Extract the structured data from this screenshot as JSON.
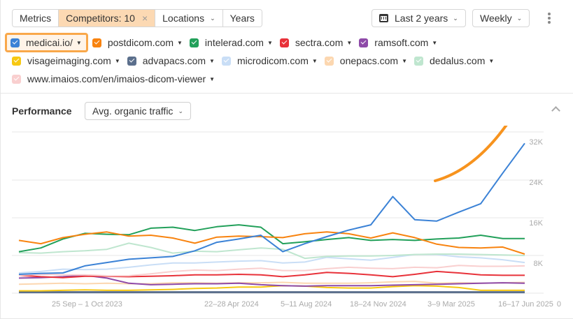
{
  "toolbar": {
    "metrics_label": "Metrics",
    "competitors_label": "Competitors: 10",
    "competitors_clear": "×",
    "locations_label": "Locations",
    "years_label": "Years",
    "date_range_label": "Last 2 years",
    "granularity_label": "Weekly",
    "chevron": "⌄"
  },
  "legend": {
    "items": [
      {
        "label": "medicai.io/",
        "color": "#3b82d6",
        "highlighted": true
      },
      {
        "label": "postdicom.com",
        "color": "#f8830f"
      },
      {
        "label": "intelerad.com",
        "color": "#22a05a"
      },
      {
        "label": "sectra.com",
        "color": "#e8323a"
      },
      {
        "label": "ramsoft.com",
        "color": "#8e4aa8"
      },
      {
        "label": "visageimaging.com",
        "color": "#f7c812"
      },
      {
        "label": "advapacs.com",
        "color": "#5b6f8c"
      },
      {
        "label": "microdicom.com",
        "color": "#c9def6"
      },
      {
        "label": "onepacs.com",
        "color": "#fcd7b0"
      },
      {
        "label": "dedalus.com",
        "color": "#bfe6cf"
      },
      {
        "label": "www.imaios.com/en/imaios-dicom-viewer",
        "color": "#f9cfcf"
      }
    ],
    "caret": "▼"
  },
  "performance": {
    "title": "Performance",
    "metric_label": "Avg. organic traffic"
  },
  "annotation": {
    "type": "arrow",
    "color": "#f7931e",
    "meaning": "growth trend for medicai.io/"
  },
  "chart_data": {
    "type": "line",
    "title": "Performance — Avg. organic traffic",
    "xlabel": "",
    "ylabel": "Avg. organic traffic",
    "ylim": [
      0,
      32000
    ],
    "yticks": [
      "0",
      "8K",
      "16K",
      "24K",
      "32K"
    ],
    "xticks": [
      "25 Sep – 1 Oct 2023",
      "22–28 Apr 2024",
      "5–11 Aug 2024",
      "18–24 Nov 2024",
      "3–9 Mar 2025",
      "16–17 Jun 2025"
    ],
    "grid": true,
    "legend_position": "top",
    "x": [
      "2023-07",
      "2023-08",
      "2023-09",
      "2023-10",
      "2023-11",
      "2023-12",
      "2024-01",
      "2024-02",
      "2024-03",
      "2024-04",
      "2024-05",
      "2024-06",
      "2024-07",
      "2024-08",
      "2024-09",
      "2024-10",
      "2024-11",
      "2024-12",
      "2025-01",
      "2025-02",
      "2025-03",
      "2025-04",
      "2025-05",
      "2025-06"
    ],
    "series": [
      {
        "name": "medicai.io/",
        "color": "#3b82d6",
        "values": [
          4000,
          4200,
          4300,
          5800,
          6500,
          7200,
          7500,
          7800,
          9000,
          10800,
          11500,
          12300,
          8800,
          10500,
          12000,
          13400,
          14500,
          20500,
          15600,
          15300,
          17200,
          19000,
          25500,
          31800
        ]
      },
      {
        "name": "postdicom.com",
        "color": "#f8830f",
        "values": [
          11200,
          10500,
          11800,
          12500,
          13000,
          12100,
          12300,
          11700,
          10600,
          11900,
          12100,
          12000,
          11800,
          12600,
          13000,
          12600,
          11700,
          12800,
          11800,
          10400,
          9700,
          9600,
          9800,
          8300
        ]
      },
      {
        "name": "intelerad.com",
        "color": "#22a05a",
        "values": [
          8800,
          9600,
          11500,
          12700,
          12500,
          12400,
          13800,
          14000,
          13300,
          14100,
          14500,
          14000,
          10500,
          10900,
          11400,
          11800,
          11200,
          11400,
          11200,
          11500,
          11700,
          12300,
          11600,
          11600
        ]
      },
      {
        "name": "sectra.com",
        "color": "#e8323a",
        "values": [
          3800,
          3500,
          3300,
          3600,
          3600,
          3500,
          3600,
          3700,
          3900,
          3900,
          4000,
          3900,
          3500,
          3900,
          4400,
          4200,
          3900,
          3500,
          4000,
          4600,
          4300,
          3900,
          3800,
          3800
        ]
      },
      {
        "name": "ramsoft.com",
        "color": "#8e4aa8",
        "values": [
          3200,
          3300,
          3500,
          3800,
          3200,
          2100,
          1800,
          1900,
          2000,
          2000,
          2100,
          1800,
          1600,
          1500,
          1600,
          1600,
          1600,
          1700,
          1800,
          1900,
          2000,
          2100,
          2200,
          2100
        ]
      },
      {
        "name": "visageimaging.com",
        "color": "#f7c812",
        "values": [
          500,
          500,
          600,
          700,
          600,
          600,
          700,
          800,
          1000,
          1100,
          1300,
          1300,
          1600,
          1500,
          1200,
          1100,
          1100,
          1400,
          1600,
          1500,
          1200,
          600,
          600,
          600
        ]
      },
      {
        "name": "advapacs.com",
        "color": "#5b6f8c",
        "values": [
          200,
          200,
          200,
          200,
          200,
          200,
          200,
          200,
          200,
          200,
          200,
          200,
          200,
          200,
          200,
          200,
          200,
          200,
          200,
          200,
          200,
          200,
          200,
          200
        ]
      },
      {
        "name": "microdicom.com",
        "color": "#c9def6",
        "values": [
          4300,
          4600,
          5100,
          5000,
          5100,
          5500,
          6000,
          6400,
          6400,
          6600,
          6800,
          6900,
          6400,
          6600,
          7600,
          7300,
          7000,
          7600,
          8200,
          8200,
          7700,
          7500,
          7100,
          6500
        ]
      },
      {
        "name": "onepacs.com",
        "color": "#fcd7b0",
        "values": [
          1900,
          2000,
          2100,
          2000,
          2100,
          2000,
          2000,
          2200,
          2200,
          2100,
          2200,
          2200,
          2300,
          2100,
          2100,
          2100,
          2200,
          2400,
          2500,
          2100,
          2200,
          2100,
          2200,
          2300
        ]
      },
      {
        "name": "dedalus.com",
        "color": "#bfe6cf",
        "values": [
          8600,
          8500,
          8800,
          9000,
          9300,
          10600,
          9700,
          8500,
          8900,
          8800,
          9200,
          9600,
          9300,
          7400,
          7800,
          7900,
          7900,
          8000,
          8200,
          8300,
          8300,
          8200,
          8100,
          8000
        ]
      },
      {
        "name": "www.imaios.com/en/imaios-dicom-viewer",
        "color": "#f9cfcf",
        "values": [
          3800,
          4000,
          3900,
          3900,
          3700,
          3700,
          4100,
          4600,
          4900,
          4800,
          5100,
          5300,
          4800,
          4800,
          5200,
          5500,
          5300,
          5200,
          5500,
          5400,
          5900,
          5700,
          5700,
          5800
        ]
      }
    ]
  }
}
